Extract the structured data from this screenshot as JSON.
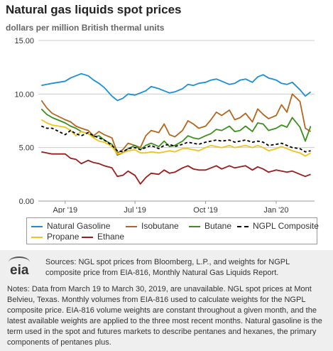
{
  "header": {
    "title": "Natural gas liquids spot prices",
    "subtitle": "dollars per million British thermal units"
  },
  "footer": {
    "logo_text": "eia",
    "sources": "Sources: NGL spot prices from Bloomberg, L.P., and weights for NGPL composite price from EIA-816, Monthly Natural Gas Liquids Report.",
    "notes": "Notes: Data from March 19 to March 30, 2019, are unavailable. NGL spot prices at Mont Belvieu, Texas. Monthly volumes from EIA-816 used to calculate weights for the NGPL composite price. EIA-816 volume weights are constant throughout a given month, and the latest available weights are applied to the three most recent months. Natural gasoline is the term used in the spot and futures markets to describe pentanes and hexanes, the primary components of pentanes plus."
  },
  "chart_data": {
    "type": "line",
    "ylim": [
      0,
      15
    ],
    "yticks": [
      "0.00",
      "5.00",
      "10.00",
      "15.00"
    ],
    "xticks": [
      "Apr '19",
      "Jul '19",
      "Oct '19",
      "Jan '20"
    ],
    "grid": "horizontal",
    "legend_position": "bottom",
    "x": [
      "2019-03-01",
      "2019-03-08",
      "2019-03-15",
      "2019-04-01",
      "2019-04-08",
      "2019-04-15",
      "2019-04-22",
      "2019-05-01",
      "2019-05-08",
      "2019-05-15",
      "2019-05-22",
      "2019-06-01",
      "2019-06-08",
      "2019-06-15",
      "2019-06-22",
      "2019-07-01",
      "2019-07-08",
      "2019-07-15",
      "2019-07-22",
      "2019-08-01",
      "2019-08-08",
      "2019-08-15",
      "2019-08-22",
      "2019-09-01",
      "2019-09-08",
      "2019-09-15",
      "2019-09-22",
      "2019-10-01",
      "2019-10-08",
      "2019-10-15",
      "2019-10-22",
      "2019-11-01",
      "2019-11-08",
      "2019-11-15",
      "2019-11-22",
      "2019-12-01",
      "2019-12-08",
      "2019-12-15",
      "2019-12-22",
      "2020-01-01",
      "2020-01-08",
      "2020-01-15",
      "2020-01-22",
      "2020-02-01",
      "2020-02-08",
      "2020-02-15"
    ],
    "series": [
      {
        "name": "Natural Gasoline",
        "color": "#1b8fd6",
        "values": [
          10.8,
          10.9,
          11.0,
          11.2,
          11.5,
          11.7,
          11.9,
          11.7,
          11.3,
          11.0,
          10.6,
          9.8,
          9.4,
          9.6,
          10.0,
          9.9,
          10.1,
          10.3,
          10.7,
          10.5,
          10.3,
          10.1,
          10.2,
          10.5,
          10.9,
          10.8,
          11.0,
          11.1,
          11.3,
          11.4,
          11.2,
          10.9,
          11.0,
          11.3,
          11.4,
          11.1,
          11.6,
          11.8,
          11.5,
          11.3,
          11.0,
          10.9,
          11.1,
          10.4,
          9.8,
          10.2
        ]
      },
      {
        "name": "Isobutane",
        "color": "#b5651d",
        "values": [
          9.4,
          8.7,
          8.2,
          7.6,
          7.4,
          7.0,
          6.8,
          6.6,
          6.1,
          6.5,
          6.2,
          5.9,
          4.5,
          4.8,
          5.4,
          5.2,
          5.0,
          6.1,
          6.6,
          6.4,
          7.2,
          6.2,
          6.0,
          6.6,
          7.5,
          7.2,
          6.8,
          7.0,
          7.6,
          8.3,
          8.0,
          8.5,
          7.6,
          7.8,
          8.2,
          7.4,
          8.6,
          8.1,
          7.7,
          8.0,
          9.0,
          8.3,
          10.0,
          9.3,
          6.8,
          6.5
        ]
      },
      {
        "name": "Butane",
        "color": "#3a8f1e",
        "values": [
          8.6,
          8.1,
          7.8,
          7.3,
          7.0,
          6.8,
          6.5,
          6.3,
          6.0,
          6.1,
          5.7,
          5.3,
          4.3,
          4.5,
          4.9,
          5.2,
          4.8,
          5.2,
          5.4,
          5.1,
          5.6,
          5.1,
          5.2,
          5.6,
          6.1,
          5.9,
          5.8,
          6.1,
          6.3,
          6.7,
          6.6,
          7.0,
          6.5,
          6.6,
          7.0,
          6.5,
          7.3,
          7.2,
          6.6,
          6.8,
          7.1,
          6.9,
          7.8,
          6.9,
          5.6,
          7.0
        ]
      },
      {
        "name": "NGPL Composite",
        "color": "#000000",
        "dash": true,
        "values": [
          7.0,
          6.8,
          6.8,
          6.2,
          6.6,
          6.3,
          6.1,
          6.4,
          6.1,
          5.9,
          5.7,
          5.2,
          4.7,
          4.6,
          4.9,
          5.0,
          4.8,
          5.0,
          5.2,
          4.9,
          5.2,
          5.3,
          5.1,
          5.3,
          5.5,
          5.4,
          5.3,
          5.5,
          5.6,
          5.7,
          5.6,
          5.7,
          5.5,
          5.6,
          5.7,
          5.5,
          5.6,
          5.5,
          5.2,
          5.3,
          5.4,
          5.2,
          5.0,
          4.9,
          4.6,
          4.7
        ]
      },
      {
        "name": "Propane",
        "color": "#f0c419",
        "values": [
          7.6,
          7.3,
          7.1,
          6.9,
          6.6,
          6.1,
          6.5,
          6.3,
          5.9,
          5.6,
          5.5,
          5.1,
          4.4,
          4.5,
          4.7,
          4.8,
          4.5,
          4.5,
          4.6,
          4.5,
          4.6,
          4.7,
          4.6,
          4.9,
          4.9,
          4.8,
          4.7,
          5.0,
          5.2,
          5.1,
          5.0,
          5.2,
          5.0,
          5.1,
          5.2,
          5.0,
          5.2,
          5.0,
          4.7,
          4.9,
          5.1,
          4.9,
          4.7,
          4.5,
          4.2,
          4.5
        ]
      },
      {
        "name": "Ethane",
        "color": "#9b1c1c",
        "values": [
          4.6,
          4.5,
          4.4,
          4.4,
          4.0,
          3.9,
          3.5,
          3.8,
          3.6,
          3.5,
          3.3,
          3.1,
          2.3,
          2.4,
          2.8,
          2.4,
          1.6,
          2.2,
          2.6,
          2.5,
          2.9,
          2.6,
          2.7,
          3.1,
          3.3,
          3.0,
          2.9,
          2.9,
          3.1,
          3.3,
          3.0,
          3.3,
          3.1,
          3.2,
          3.3,
          2.9,
          3.2,
          3.0,
          2.7,
          2.9,
          2.8,
          2.7,
          2.8,
          2.5,
          2.3,
          2.5
        ]
      }
    ]
  }
}
